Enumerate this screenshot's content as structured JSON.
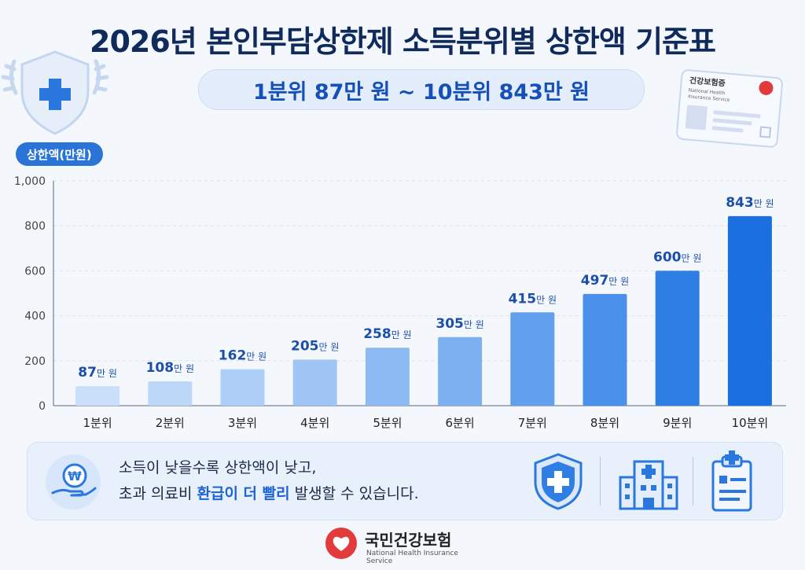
{
  "header": {
    "title": "2026년 본인부담상한제 소득분위별 상한액 기준표",
    "subtitle": "1분위 87만 원 ~ 10분위 843만 원"
  },
  "card": {
    "title": "건강보험증",
    "sub1": "National Health",
    "sub2": "Insurance Service"
  },
  "chart_data": {
    "type": "bar",
    "title": "",
    "ylabel": "상한액(만원)",
    "xlabel": "",
    "categories": [
      "1분위",
      "2분위",
      "3분위",
      "4분위",
      "5분위",
      "6분위",
      "7분위",
      "8분위",
      "9분위",
      "10분위"
    ],
    "values": [
      87,
      108,
      162,
      205,
      258,
      305,
      415,
      497,
      600,
      843
    ],
    "value_labels": [
      "87",
      "108",
      "162",
      "205",
      "258",
      "305",
      "415",
      "497",
      "600",
      "843"
    ],
    "unit_label": "만 원",
    "ylim": [
      0,
      1000
    ],
    "yticks": [
      "0",
      "200",
      "400",
      "600",
      "800",
      "1,000"
    ],
    "ytick_values": [
      0,
      200,
      400,
      600,
      800,
      1000
    ],
    "grid": true,
    "colors": [
      "#c9dffa",
      "#bcd7f8",
      "#aecef7",
      "#9fc5f5",
      "#8dbaf3",
      "#7cb0f1",
      "#62a0ee",
      "#4b90ea",
      "#2f7ee4",
      "#1c6fdf"
    ]
  },
  "info": {
    "line1": "소득이 낮을수록 상한액이 낮고,",
    "line2_pre": "초과 의료비 ",
    "line2_hl": "환급이 더 빨리",
    "line2_post": " 발생할 수 있습니다."
  },
  "logo": {
    "name": "국민건강보험",
    "sub": "National Health Insurance Service"
  }
}
